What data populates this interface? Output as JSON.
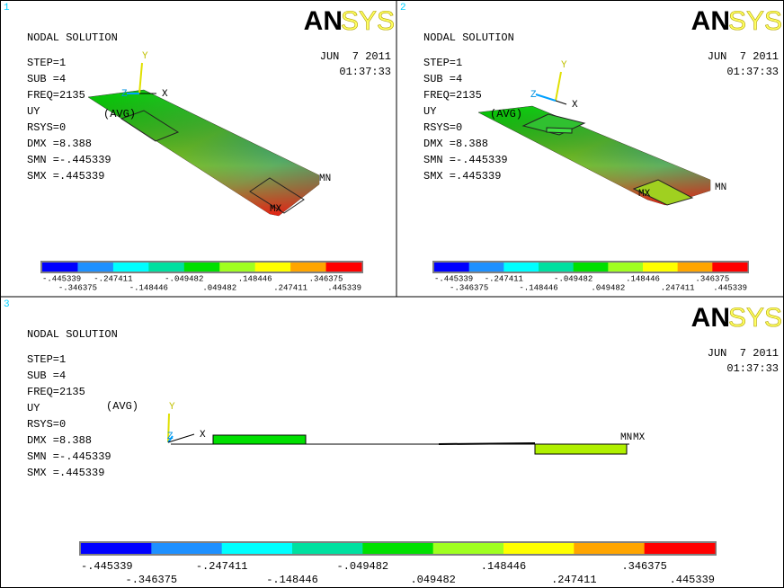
{
  "panels": [
    {
      "number": "1",
      "title": "NODAL SOLUTION",
      "date": "JUN  7 2011",
      "time": "01:37:33",
      "logo": {
        "bold": "AN",
        "outline": "SYS"
      },
      "info": [
        "STEP=1",
        "SUB =4",
        "FREQ=2135",
        "UY",
        "RSYS=0",
        "DMX =8.388",
        "SMN =-.445339",
        "SMX =.445339"
      ],
      "avg": "(AVG)",
      "axes": {
        "x": "X",
        "y": "Y",
        "z": "Z"
      },
      "min_label": "MN",
      "max_label": "MX",
      "legend": [
        "-.445339",
        "-.346375",
        "-.247411",
        "-.148446",
        "-.049482",
        ".049482",
        ".148446",
        ".247411",
        ".346375",
        ".445339"
      ]
    },
    {
      "number": "2",
      "title": "NODAL SOLUTION",
      "date": "JUN  7 2011",
      "time": "01:37:33",
      "logo": {
        "bold": "AN",
        "outline": "SYS"
      },
      "info": [
        "STEP=1",
        "SUB =4",
        "FREQ=2135",
        "UY",
        "RSYS=0",
        "DMX =8.388",
        "SMN =-.445339",
        "SMX =.445339"
      ],
      "avg": "(AVG)",
      "axes": {
        "x": "X",
        "y": "Y",
        "z": "Z"
      },
      "min_label": "MN",
      "max_label": "MX",
      "legend": [
        "-.445339",
        "-.346375",
        "-.247411",
        "-.148446",
        "-.049482",
        ".049482",
        ".148446",
        ".247411",
        ".346375",
        ".445339"
      ]
    },
    {
      "number": "3",
      "title": "NODAL SOLUTION",
      "date": "JUN  7 2011",
      "time": "01:37:33",
      "logo": {
        "bold": "AN",
        "outline": "SYS"
      },
      "info": [
        "STEP=1",
        "SUB =4",
        "FREQ=2135",
        "UY",
        "RSYS=0",
        "DMX =8.388",
        "SMN =-.445339",
        "SMX =.445339"
      ],
      "avg": "(AVG)",
      "axes": {
        "x": "X",
        "y": "Y",
        "z": "Z"
      },
      "min_label": "MN",
      "max_label": "MX",
      "legend": [
        "-.445339",
        "-.346375",
        "-.247411",
        "-.148446",
        "-.049482",
        ".049482",
        ".148446",
        ".247411",
        ".346375",
        ".445339"
      ]
    }
  ]
}
